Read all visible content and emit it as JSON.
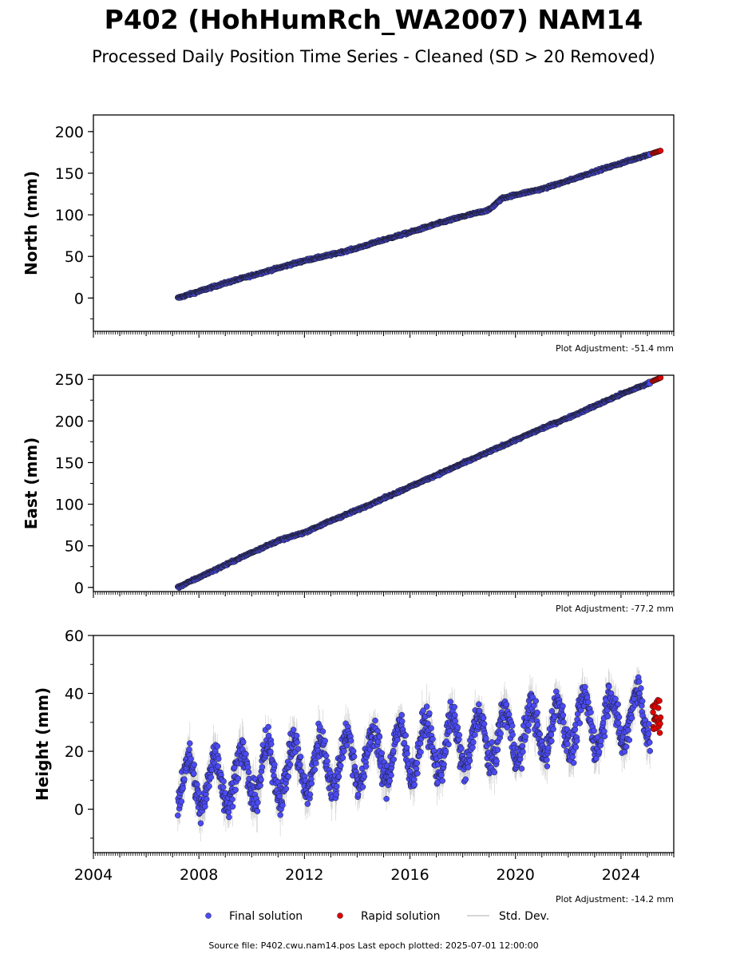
{
  "title": "P402 (HohHumRch_WA2007) NAM14",
  "subtitle": "Processed Daily Position Time Series - Cleaned (SD > 20 Removed)",
  "colors": {
    "final": "#4b4bf5",
    "rapid": "#e00000",
    "std": "#c8c8c8",
    "edge": "#1a1a1a"
  },
  "legend": {
    "position": "bottom-center",
    "items": [
      {
        "label": "Final solution",
        "color": "#4b4bf5",
        "kind": "dot"
      },
      {
        "label": "Rapid solution",
        "color": "#e00000",
        "kind": "dot"
      },
      {
        "label": "Std. Dev.",
        "color": "#c8c8c8",
        "kind": "line"
      }
    ]
  },
  "footer": "Source file: P402.cwu.nam14.pos  Last epoch plotted: 2025-07-01 12:00:00",
  "chart_data": [
    {
      "type": "scatter",
      "ylabel": "North (mm)",
      "adjustment": "Plot Adjustment: -51.4 mm",
      "xlim": [
        2004,
        2026
      ],
      "ylim": [
        -40,
        220
      ],
      "yticks": [
        0,
        50,
        100,
        150,
        200
      ],
      "xticks": [
        2004,
        2008,
        2012,
        2016,
        2020,
        2024
      ],
      "show_xtick_labels": false,
      "series": [
        {
          "name": "Final solution",
          "x": [
            2007.2,
            2008,
            2009,
            2010,
            2011,
            2012,
            2013,
            2014,
            2015,
            2016,
            2017,
            2018,
            2019,
            2019.5,
            2020,
            2021,
            2022,
            2023,
            2024,
            2025.1
          ],
          "values": [
            0,
            8,
            18,
            27,
            36,
            45,
            52,
            60,
            70,
            79,
            89,
            98,
            106,
            120,
            124,
            131,
            141,
            152,
            162,
            173
          ]
        },
        {
          "name": "Rapid solution",
          "x": [
            2025.2,
            2025.5
          ],
          "values": [
            174,
            177
          ]
        }
      ]
    },
    {
      "type": "scatter",
      "ylabel": "East (mm)",
      "adjustment": "Plot Adjustment: -77.2 mm",
      "xlim": [
        2004,
        2026
      ],
      "ylim": [
        -5,
        255
      ],
      "yticks": [
        0,
        50,
        100,
        150,
        200,
        250
      ],
      "xticks": [
        2004,
        2008,
        2012,
        2016,
        2020,
        2024
      ],
      "show_xtick_labels": false,
      "series": [
        {
          "name": "Final solution",
          "x": [
            2007.2,
            2008,
            2009,
            2010,
            2011,
            2012,
            2013,
            2014,
            2015,
            2016,
            2017,
            2018,
            2019,
            2020,
            2021,
            2022,
            2023,
            2024,
            2025.1
          ],
          "values": [
            0,
            12,
            27,
            42,
            56,
            66,
            80,
            93,
            107,
            121,
            135,
            149,
            163,
            177,
            191,
            204,
            218,
            232,
            246
          ]
        },
        {
          "name": "Rapid solution",
          "x": [
            2025.2,
            2025.5
          ],
          "values": [
            248,
            252
          ]
        }
      ]
    },
    {
      "type": "scatter",
      "ylabel": "Height (mm)",
      "adjustment": "Plot Adjustment: -14.2 mm",
      "xlim": [
        2004,
        2026
      ],
      "ylim": [
        -15,
        60
      ],
      "yticks": [
        0,
        20,
        40,
        60
      ],
      "xticks": [
        2004,
        2008,
        2012,
        2016,
        2020,
        2024
      ],
      "xtick_labels": [
        "2004",
        "2008",
        "2012",
        "2016",
        "2020",
        "2024"
      ],
      "show_xtick_labels": true,
      "trend": {
        "start": [
          2007.2,
          8
        ],
        "end": [
          2025.1,
          33
        ],
        "seasonal_amplitude_mm": 9,
        "scatter_mm": 4
      },
      "series": [
        {
          "name": "Final solution",
          "x": [
            2007.2,
            2010,
            2013,
            2016,
            2019,
            2022,
            2025.1
          ],
          "values": [
            8,
            11,
            15,
            20,
            24,
            28,
            33
          ]
        },
        {
          "name": "Rapid solution",
          "x": [
            2025.2,
            2025.5
          ],
          "values": [
            26,
            38
          ]
        }
      ]
    }
  ]
}
